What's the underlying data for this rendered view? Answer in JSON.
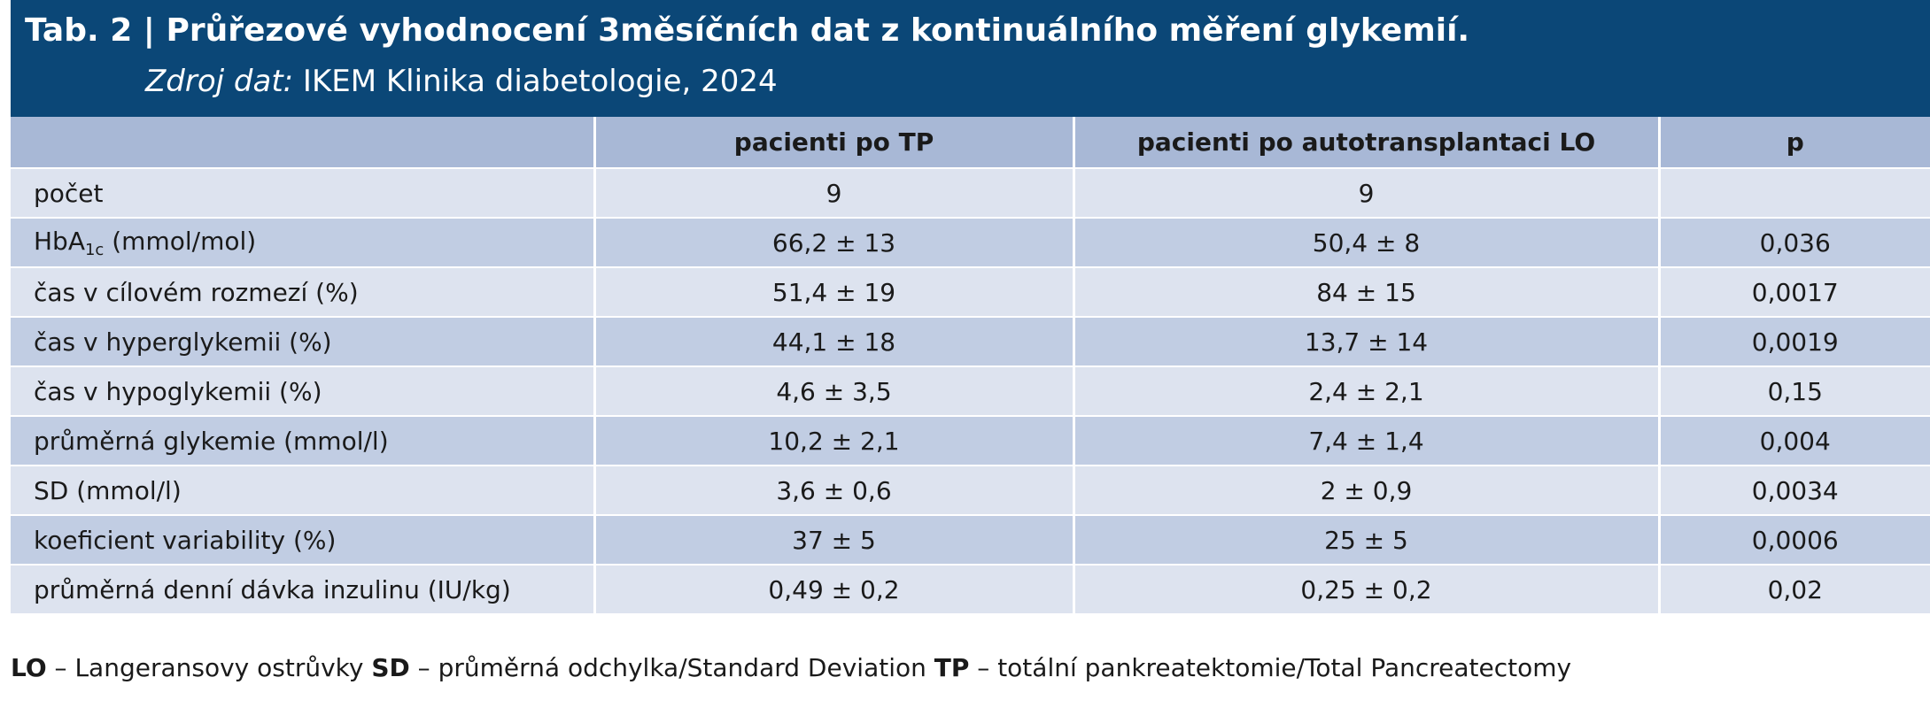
{
  "header": {
    "title": "Tab. 2 | Průřezové vyhodnocení 3měsíčních dat z kontinuálního měření glykemií.",
    "source_label": "Zdroj dat:",
    "source_text": " IKEM Klinika diabetologie, 2024"
  },
  "table": {
    "columns": [
      "",
      "pacienti po TP",
      "pacienti po autotransplantaci LO",
      "p"
    ],
    "rows": [
      {
        "label": "počet",
        "tp": "9",
        "lo": "9",
        "p": ""
      },
      {
        "label_main": "HbA",
        "label_sub": "1c",
        "label_rest": " (mmol/mol)",
        "tp": "66,2 ± 13",
        "lo": "50,4 ± 8",
        "p": "0,036"
      },
      {
        "label": "čas v cílovém rozmezí (%)",
        "tp": "51,4 ± 19",
        "lo": "84 ± 15",
        "p": "0,0017"
      },
      {
        "label": "čas v hyperglykemii (%)",
        "tp": "44,1 ± 18",
        "lo": "13,7 ± 14",
        "p": "0,0019"
      },
      {
        "label": "čas v hypoglykemii (%)",
        "tp": "4,6 ± 3,5",
        "lo": "2,4 ± 2,1",
        "p": "0,15"
      },
      {
        "label": "průměrná glykemie (mmol/l)",
        "tp": "10,2 ± 2,1",
        "lo": "7,4 ± 1,4",
        "p": "0,004"
      },
      {
        "label": "SD (mmol/l)",
        "tp": "3,6 ± 0,6",
        "lo": "2 ± 0,9",
        "p": "0,0034"
      },
      {
        "label": "koeficient variability (%)",
        "tp": "37 ± 5",
        "lo": "25 ± 5",
        "p": "0,0006"
      },
      {
        "label": "průměrná denní dávka inzulinu (IU/kg)",
        "tp": "0,49 ± 0,2",
        "lo": "0,25 ± 0,2",
        "p": "0,02"
      }
    ]
  },
  "footnote": {
    "lo_abbr": "LO",
    "lo_text": " – Langeransovy ostrůvky ",
    "sd_abbr": "SD",
    "sd_text": " – průměrná odchylka/Standard Deviation ",
    "tp_abbr": "TP",
    "tp_text": " – totální pankreatektomie/Total Pancreatectomy"
  },
  "colors": {
    "header_bg": "#0b4777",
    "column_header_bg": "#a8b8d6",
    "row_light": "#dde3ef",
    "row_dark": "#c1cde3"
  }
}
